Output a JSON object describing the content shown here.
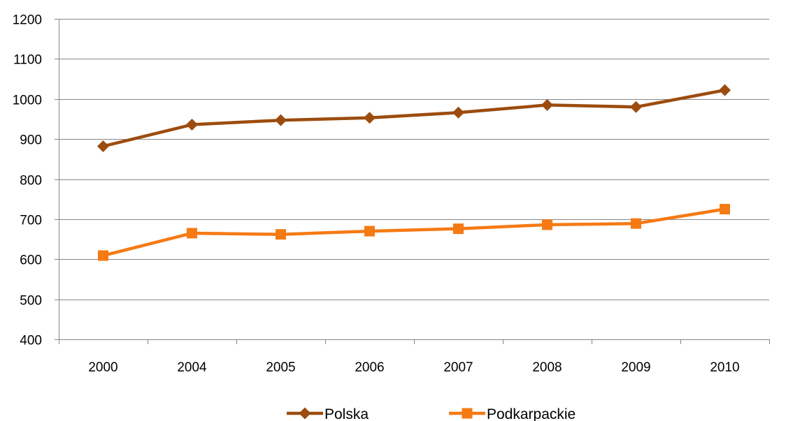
{
  "chart_data": {
    "type": "line",
    "categories": [
      "2000",
      "2004",
      "2005",
      "2006",
      "2007",
      "2008",
      "2009",
      "2010"
    ],
    "ylim": [
      400,
      1200
    ],
    "yticks": [
      400,
      500,
      600,
      700,
      800,
      900,
      1000,
      1100,
      1200
    ],
    "grid": true,
    "legend_position": "bottom",
    "series": [
      {
        "name": "Polska",
        "values": [
          882,
          936,
          947,
          953,
          966,
          985,
          980,
          1022
        ],
        "color": "#9C4C0E",
        "marker": "diamond"
      },
      {
        "name": "Podkarpackie",
        "values": [
          609,
          665,
          662,
          670,
          676,
          686,
          689,
          725
        ],
        "color": "#F57A14",
        "marker": "square"
      }
    ]
  }
}
